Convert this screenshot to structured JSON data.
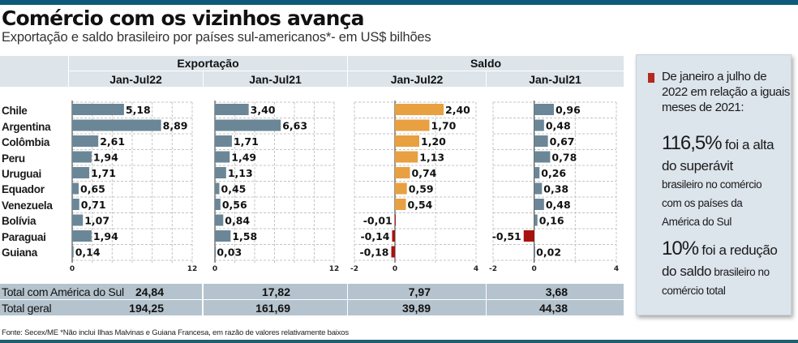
{
  "header": {
    "title": "Comércio com os vizinhos avança",
    "subtitle": "Exportação e saldo brasileiro por países sul-americanos*- em US$ bilhões"
  },
  "table_headers": {
    "group_export": "Exportação",
    "group_balance": "Saldo",
    "periods": [
      "Jan-Jul22",
      "Jan-Jul21",
      "Jan-Jul22",
      "Jan-Jul21"
    ]
  },
  "countries": [
    "Chile",
    "Argentina",
    "Colômbia",
    "Peru",
    "Uruguai",
    "Equador",
    "Venezuela",
    "Bolívia",
    "Paraguai",
    "Guiana"
  ],
  "colors": {
    "export_bar": "#6b8797",
    "balance22_positive": "#e8a040",
    "balance21_positive": "#6b8797",
    "negative": "#a8120f"
  },
  "chart_data": [
    {
      "type": "bar",
      "orientation": "horizontal",
      "title": "Exportação Jan-Jul22",
      "categories": [
        "Chile",
        "Argentina",
        "Colômbia",
        "Peru",
        "Uruguai",
        "Equador",
        "Venezuela",
        "Bolívia",
        "Paraguai",
        "Guiana"
      ],
      "values": [
        5.18,
        8.89,
        2.61,
        1.94,
        1.71,
        0.65,
        0.71,
        1.07,
        1.94,
        0.14
      ],
      "labels": [
        "5,18",
        "8,89",
        "2,61",
        "1,94",
        "1,71",
        "0,65",
        "0,71",
        "1,07",
        "1,94",
        "0,14"
      ],
      "xlim": [
        0,
        12
      ],
      "ticks": [
        0,
        12
      ],
      "tick_labels": [
        "0",
        "12"
      ],
      "grid": true
    },
    {
      "type": "bar",
      "orientation": "horizontal",
      "title": "Exportação Jan-Jul21",
      "categories": [
        "Chile",
        "Argentina",
        "Colômbia",
        "Peru",
        "Uruguai",
        "Equador",
        "Venezuela",
        "Bolívia",
        "Paraguai",
        "Guiana"
      ],
      "values": [
        3.4,
        6.63,
        1.71,
        1.49,
        1.13,
        0.45,
        0.56,
        0.84,
        1.58,
        0.03
      ],
      "labels": [
        "3,40",
        "6,63",
        "1,71",
        "1,49",
        "1,13",
        "0,45",
        "0,56",
        "0,84",
        "1,58",
        "0,03"
      ],
      "xlim": [
        0,
        12
      ],
      "ticks": [
        0,
        12
      ],
      "tick_labels": [
        "0",
        "12"
      ],
      "grid": true
    },
    {
      "type": "bar",
      "orientation": "horizontal",
      "title": "Saldo Jan-Jul22",
      "categories": [
        "Chile",
        "Argentina",
        "Colômbia",
        "Peru",
        "Uruguai",
        "Equador",
        "Venezuela",
        "Bolívia",
        "Paraguai",
        "Guiana"
      ],
      "values": [
        2.4,
        1.7,
        1.2,
        1.13,
        0.74,
        0.59,
        0.54,
        -0.01,
        -0.14,
        -0.18
      ],
      "labels": [
        "2,40",
        "1,70",
        "1,20",
        "1,13",
        "0,74",
        "0,59",
        "0,54",
        "-0,01",
        "-0,14",
        "-0,18"
      ],
      "xlim": [
        -2,
        4
      ],
      "ticks": [
        -2,
        0,
        4
      ],
      "tick_labels": [
        "-2",
        "0",
        "4"
      ],
      "grid": true
    },
    {
      "type": "bar",
      "orientation": "horizontal",
      "title": "Saldo Jan-Jul21",
      "categories": [
        "Chile",
        "Argentina",
        "Colômbia",
        "Peru",
        "Uruguai",
        "Equador",
        "Venezuela",
        "Bolívia",
        "Paraguai",
        "Guiana"
      ],
      "values": [
        0.96,
        0.48,
        0.67,
        0.78,
        0.26,
        0.38,
        0.48,
        0.16,
        -0.51,
        0.02
      ],
      "labels": [
        "0,96",
        "0,48",
        "0,67",
        "0,78",
        "0,26",
        "0,38",
        "0,48",
        "0,16",
        "-0,51",
        "0,02"
      ],
      "xlim": [
        -2,
        4
      ],
      "ticks": [
        -2,
        0,
        4
      ],
      "tick_labels": [
        "-2",
        "0",
        "4"
      ],
      "grid": true
    }
  ],
  "totals": [
    {
      "label": "Total com América do Sul",
      "values": [
        "24,84",
        "17,82",
        "7,97",
        "3,68"
      ]
    },
    {
      "label": "Total geral",
      "values": [
        "194,25",
        "161,69",
        "39,89",
        "44,38"
      ]
    }
  ],
  "sidebox": {
    "intro": "De janeiro a julho de 2022 em relação a iguais meses de 2021:",
    "stat1_big": "116,5%",
    "stat1_mid1": " foi a alta",
    "stat1_mid2": "do  superávit",
    "stat1_small": "brasileiro no comércio com os países da América do Sul",
    "stat2_big": "10%",
    "stat2_mid1": " foi a redução",
    "stat2_mid2": "do saldo",
    "stat2_small1": " brasileiro no",
    "stat2_small2": "comércio total"
  },
  "footer": {
    "source": "Fonte: Secex/ME  *Não inclui Ilhas Malvinas e Guiana Francesa, em razão de valores relativamente baixos"
  }
}
